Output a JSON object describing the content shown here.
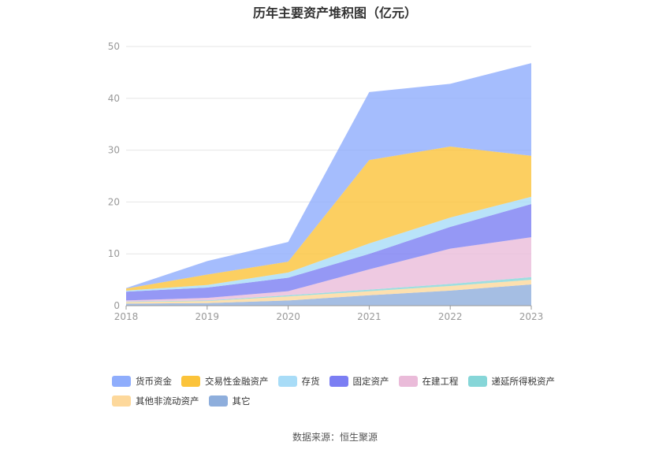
{
  "title": "历年主要资产堆积图（亿元）",
  "source": "数据来源：恒生聚源",
  "chart_data": {
    "type": "area",
    "stacked": true,
    "x": [
      "2018",
      "2019",
      "2020",
      "2021",
      "2022",
      "2023"
    ],
    "ylim": [
      0,
      50
    ],
    "yticks": [
      0,
      10,
      20,
      30,
      40,
      50
    ],
    "grid": true,
    "legend_position": "bottom",
    "series": [
      {
        "name": "其它",
        "color": "#8eaedc",
        "values": [
          0.4,
          0.5,
          1.0,
          2.0,
          2.9,
          4.1
        ]
      },
      {
        "name": "其他非流动资产",
        "color": "#fdd89b",
        "values": [
          0.3,
          0.4,
          0.8,
          0.8,
          0.9,
          0.9
        ]
      },
      {
        "name": "递延所得税资产",
        "color": "#86d6d8",
        "values": [
          0.1,
          0.1,
          0.2,
          0.3,
          0.4,
          0.5
        ]
      },
      {
        "name": "在建工程",
        "color": "#eabbd9",
        "values": [
          0.2,
          0.5,
          0.8,
          3.9,
          6.8,
          7.7
        ]
      },
      {
        "name": "固定资产",
        "color": "#7b7ef3",
        "values": [
          1.7,
          2.0,
          2.6,
          3.0,
          4.2,
          6.4
        ]
      },
      {
        "name": "存货",
        "color": "#a8dcf7",
        "values": [
          0.2,
          0.5,
          1.0,
          2.0,
          1.8,
          1.4
        ]
      },
      {
        "name": "交易性金融资产",
        "color": "#fbc33a",
        "values": [
          0.4,
          2.0,
          2.1,
          16.1,
          13.7,
          7.9
        ]
      },
      {
        "name": "货币资金",
        "color": "#8fadfc",
        "values": [
          0.1,
          2.6,
          3.8,
          13.1,
          12.1,
          17.9
        ]
      }
    ]
  },
  "legend": {
    "rows": [
      [
        {
          "name": "货币资金",
          "color": "#8fadfc"
        },
        {
          "name": "交易性金融资产",
          "color": "#fbc33a"
        },
        {
          "name": "存货",
          "color": "#a8dcf7"
        },
        {
          "name": "固定资产",
          "color": "#7b7ef3"
        },
        {
          "name": "在建工程",
          "color": "#eabbd9"
        },
        {
          "name": "递延所得税资产",
          "color": "#86d6d8"
        }
      ],
      [
        {
          "name": "其他非流动资产",
          "color": "#fdd89b"
        },
        {
          "name": "其它",
          "color": "#8eaedc"
        }
      ]
    ]
  }
}
